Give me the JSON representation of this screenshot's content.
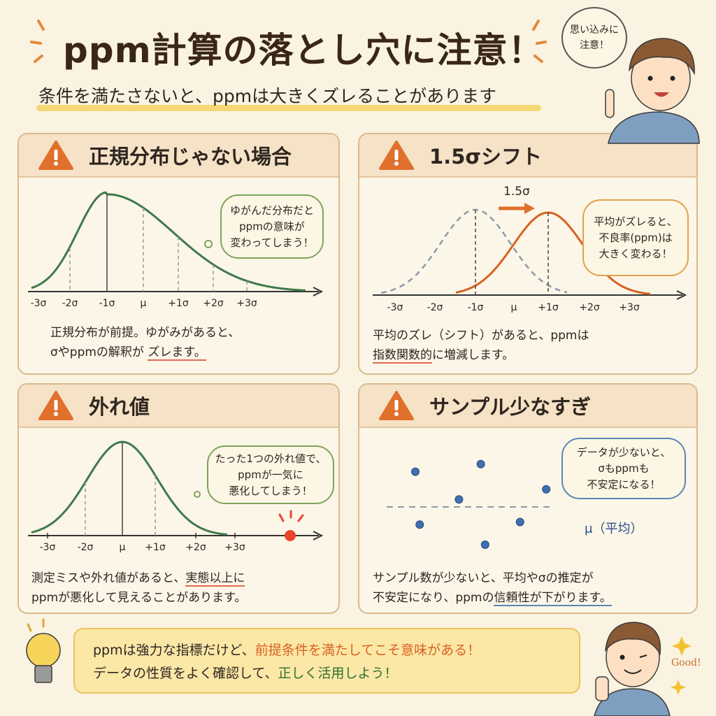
{
  "header": {
    "title": "ppm計算の落とし穴に注意！",
    "subtitle": "条件を満たさないと、ppmは大きくズレることがあります",
    "character_bubble": "思い込みに\n注意！"
  },
  "panels": [
    {
      "title": "正規分布じゃない場合",
      "icon": "warning-icon",
      "bubble": "ゆがんだ分布だと\nppmの意味が\n変わってしまう！",
      "desc_line1": "正規分布が前提。ゆがみがあると、",
      "desc_line2_pre": "σやppmの解釈が",
      "desc_line2_emph": "ズレます。"
    },
    {
      "title": "1.5σシフト",
      "icon": "warning-icon",
      "shift_label": "1.5σ",
      "bubble": "平均がズレると、\n不良率(ppm)は\n大きく変わる！",
      "desc_line1": "平均のズレ（シフト）があると、ppmは",
      "desc_line2_emph": "指数関数的",
      "desc_line2_post": "に増減します。"
    },
    {
      "title": "外れ値",
      "icon": "warning-icon",
      "bubble": "たった1つの外れ値で、\nppmが一気に\n悪化してしまう！",
      "desc_line1_pre": "測定ミスや外れ値があると、",
      "desc_line1_emph": "実態以上に",
      "desc_line2": "ppmが悪化して見えることがあります。"
    },
    {
      "title": "サンプル少なすぎ",
      "icon": "warning-icon",
      "bubble": "データが少ないと、\nσもppmも\n不安定になる！",
      "mean_label": "μ（平均）",
      "desc_line1": "サンプル数が少ないと、平均やσの推定が",
      "desc_line2_pre": "不安定になり、ppmの",
      "desc_line2_emph": "信頼性が下がります。"
    }
  ],
  "chart_data": [
    {
      "type": "line",
      "description_ticks": [
        "-3σ",
        "-2σ",
        "-1σ",
        "μ",
        "+1σ",
        "+2σ",
        "+3σ"
      ],
      "series": [
        {
          "shape": "right-skewed",
          "peak_at": "-1σ"
        }
      ],
      "color": "#3f7a4a"
    },
    {
      "type": "line",
      "description_ticks": [
        "-3σ",
        "-2σ",
        "-1σ",
        "μ",
        "+1σ",
        "+2σ",
        "+3σ"
      ],
      "series": [
        {
          "style": "dashed",
          "mean_tick": "-1σ",
          "color": "#8a9aa6"
        },
        {
          "style": "solid",
          "mean_tick": "+1σ",
          "color": "#d8611f"
        }
      ]
    },
    {
      "type": "line",
      "description_ticks": [
        "-3σ",
        "-2σ",
        "μ",
        "+1σ",
        "+2σ",
        "+3σ"
      ],
      "series": [
        {
          "shape": "normal",
          "mean_tick": "μ",
          "color": "#3f7a4a"
        }
      ],
      "outlier_color": "#e8452c"
    },
    {
      "type": "scatter",
      "points": [
        {
          "x": 1,
          "y": 1.4
        },
        {
          "x": 4,
          "y": 1.7
        },
        {
          "x": 7,
          "y": 0.7
        },
        {
          "x": 3,
          "y": 0.3
        },
        {
          "x": 1.2,
          "y": -0.7
        },
        {
          "x": 5.8,
          "y": -0.6
        },
        {
          "x": 4.2,
          "y": -1.5
        }
      ],
      "mean_line_y": 0,
      "color": "#3f6fae"
    }
  ],
  "banner": {
    "line1_pre": "ppmは強力な指標だけど、",
    "line1_emph": "前提条件を満たしてこそ意味がある！",
    "line2_pre": "データの性質をよく確認して、",
    "line2_emph": "正しく活用しよう！",
    "good_label": "Good!"
  },
  "colors": {
    "background": "#fbf3e1",
    "warning": "#e0702c",
    "accent_orange": "#d8611f",
    "green": "#3f7a4a",
    "blue": "#3f6fae",
    "highlight": "#f2d463"
  }
}
